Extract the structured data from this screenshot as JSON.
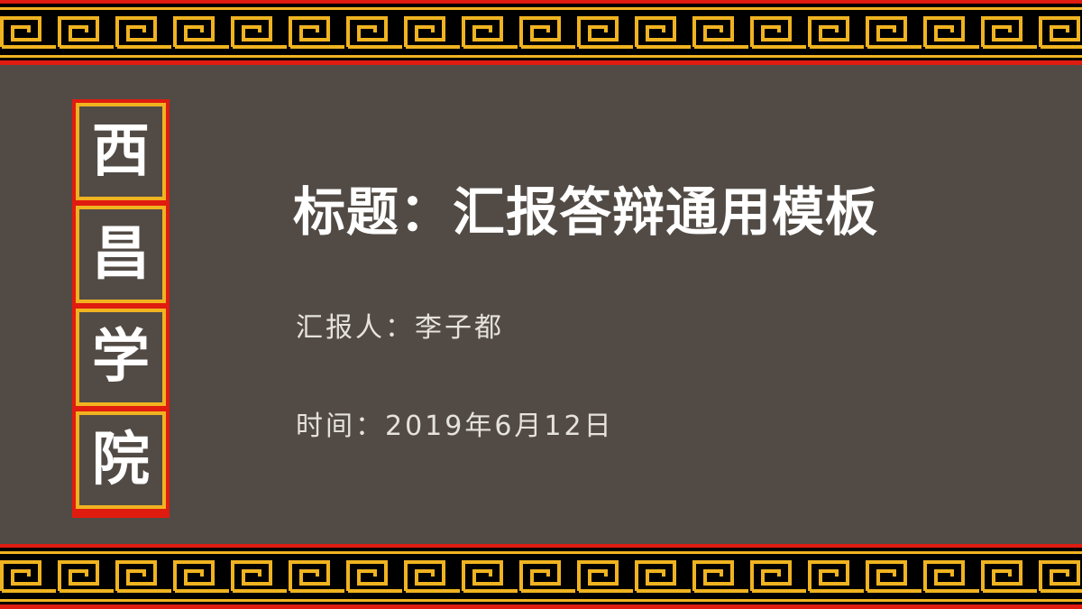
{
  "colors": {
    "background": "#524b45",
    "band": "#000000",
    "red": "#e01b10",
    "gold": "#f0b320",
    "text": "#ffffff"
  },
  "vertical_title": [
    "西",
    "昌",
    "学",
    "院"
  ],
  "slide": {
    "title": "标题：汇报答辩通用模板",
    "reporter": "汇报人：李子都",
    "date": "时间：2019年6月12日"
  },
  "decoration": {
    "top_border": "greek-key-fret-pattern",
    "bottom_border": "greek-key-fret-pattern"
  }
}
